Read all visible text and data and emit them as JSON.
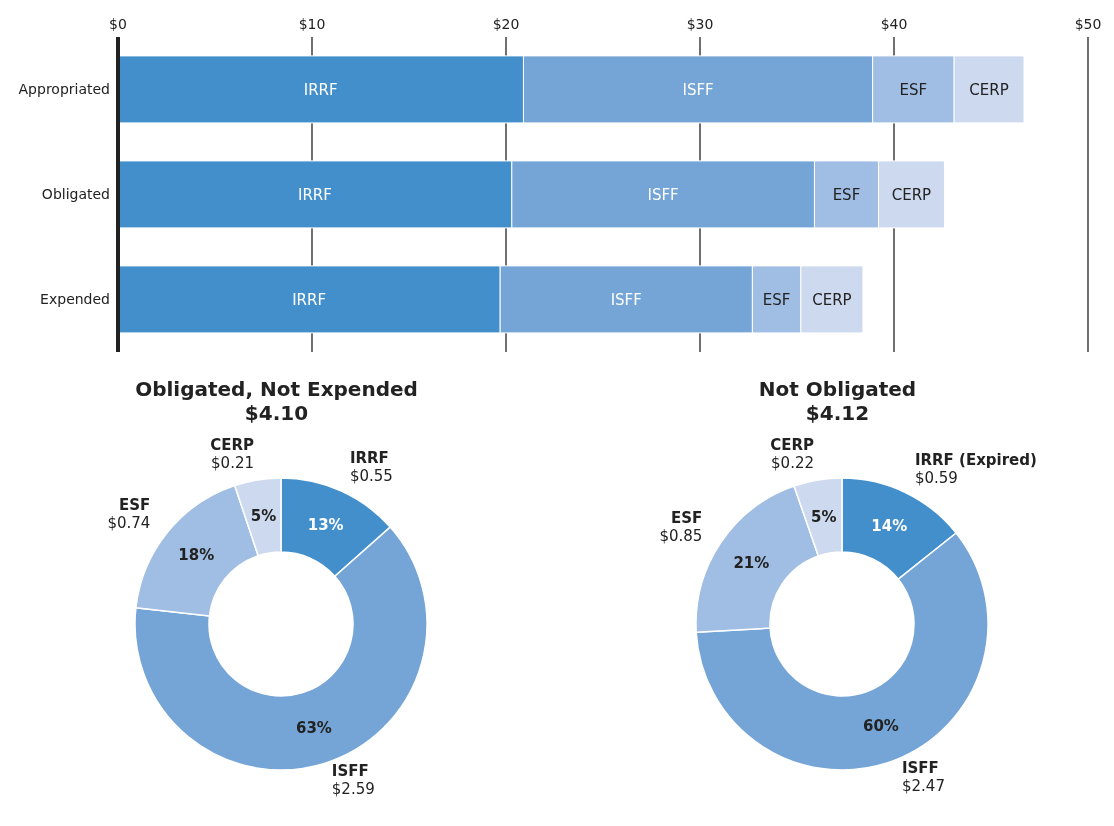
{
  "chart_data": [
    {
      "type": "bar",
      "orientation": "horizontal",
      "stacked": true,
      "categories": [
        "Appropriated",
        "Obligated",
        "Expended"
      ],
      "series": [
        {
          "name": "IRRF",
          "color": "#428fcc",
          "values": [
            20.9,
            20.3,
            19.7
          ]
        },
        {
          "name": "ISFF",
          "color": "#74a5d6",
          "values": [
            18.0,
            15.6,
            13.0
          ]
        },
        {
          "name": "ESF",
          "color": "#a0bde3",
          "values": [
            4.2,
            3.3,
            2.5
          ]
        },
        {
          "name": "CERP",
          "color": "#ccd9ef",
          "values": [
            3.6,
            3.4,
            3.2
          ]
        }
      ],
      "xlim": [
        0,
        50
      ],
      "xticks": [
        {
          "value": 0,
          "label": "$0"
        },
        {
          "value": 10,
          "label": "$10"
        },
        {
          "value": 20,
          "label": "$20"
        },
        {
          "value": 30,
          "label": "$30"
        },
        {
          "value": 40,
          "label": "$40"
        },
        {
          "value": 50,
          "label": "$50"
        }
      ],
      "grid": "x"
    },
    {
      "type": "donut",
      "title": "Obligated, Not Expended",
      "subtitle": "$4.10",
      "categories": [
        "IRRF",
        "ISFF",
        "ESF",
        "CERP"
      ],
      "values": [
        0.55,
        2.59,
        0.74,
        0.21
      ],
      "colors": [
        "#428fcc",
        "#74a5d6",
        "#a0bde3",
        "#ccd9ef"
      ],
      "value_labels": [
        "$0.55",
        "$2.59",
        "$0.74",
        "$0.21"
      ],
      "annotations": [
        {
          "text": "13%",
          "x": "IRRF"
        },
        {
          "text": "63%",
          "x": "ISFF"
        },
        {
          "text": "18%",
          "x": "ESF"
        },
        {
          "text": "5%",
          "x": "CERP"
        }
      ]
    },
    {
      "type": "donut",
      "title": "Not Obligated",
      "subtitle": "$4.12",
      "categories": [
        "IRRF (Expired)",
        "ISFF",
        "ESF",
        "CERP"
      ],
      "values": [
        0.59,
        2.47,
        0.85,
        0.22
      ],
      "colors": [
        "#428fcc",
        "#74a5d6",
        "#a0bde3",
        "#ccd9ef"
      ],
      "value_labels": [
        "$0.59",
        "$2.47",
        "$0.85",
        "$0.22"
      ],
      "annotations": [
        {
          "text": "14%",
          "x": "IRRF (Expired)"
        },
        {
          "text": "60%",
          "x": "ISFF"
        },
        {
          "text": "21%",
          "x": "ESF"
        },
        {
          "text": "5%",
          "x": "CERP"
        }
      ]
    }
  ]
}
